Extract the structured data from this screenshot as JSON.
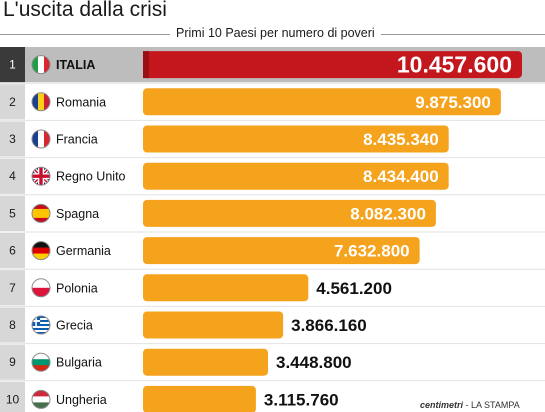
{
  "title": "L'uscita dalla crisi",
  "subtitle": "Primi 10 Paesi per numero di poveri",
  "credit": {
    "brand": "centimetri",
    "source": "LA STAMPA"
  },
  "colors": {
    "highlight": "#c4171d",
    "bar": "#f5a21c",
    "rank_panel": "#d7d7d7",
    "rank_panel_top": "#3a3a3a"
  },
  "chart_data": {
    "type": "bar",
    "orientation": "horizontal",
    "title": "L'uscita dalla crisi",
    "subtitle": "Primi 10 Paesi per numero di poveri",
    "xlim": [
      0,
      10457600
    ],
    "grid": false,
    "categories": [
      "ITALIA",
      "Romania",
      "Francia",
      "Regno Unito",
      "Spagna",
      "Germania",
      "Polonia",
      "Grecia",
      "Bulgaria",
      "Ungheria"
    ],
    "ranks": [
      "1",
      "2",
      "3",
      "4",
      "5",
      "6",
      "7",
      "8",
      "9",
      "10"
    ],
    "values": [
      10457600,
      9875300,
      8435340,
      8434400,
      8082300,
      7632800,
      4561200,
      3866160,
      3448800,
      3115760
    ],
    "labels": [
      "10.457.600",
      "9.875.300",
      "8.435.340",
      "8.434.400",
      "8.082.300",
      "7.632.800",
      "4.561.200",
      "3.866.160",
      "3.448.800",
      "3.115.760"
    ],
    "flags": [
      "flag-italy-icon",
      "flag-romania-icon",
      "flag-france-icon",
      "flag-uk-icon",
      "flag-spain-icon",
      "flag-germany-icon",
      "flag-poland-icon",
      "flag-greece-icon",
      "flag-bulgaria-icon",
      "flag-hungary-icon"
    ]
  }
}
